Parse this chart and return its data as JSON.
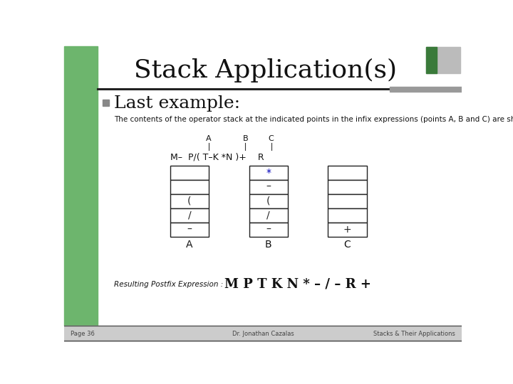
{
  "title": "Stack Application(s)",
  "title_fontsize": 26,
  "bg_color": "#ffffff",
  "left_bar_color": "#6db56d",
  "bullet_color": "#888888",
  "subtitle": "Last example:",
  "subtitle_fontsize": 18,
  "description": "The contents of the operator stack at the indicated points in the infix expressions (points A, B and C) are shown below for each case",
  "description_fontsize": 7.5,
  "stack_A_contents": [
    "",
    "",
    "(",
    "/",
    "–"
  ],
  "stack_B_contents": [
    "*",
    "–",
    "(",
    "/",
    "–"
  ],
  "stack_C_contents": [
    "",
    "",
    "",
    "",
    "+"
  ],
  "stack_labels": [
    "A",
    "B",
    "C"
  ],
  "postfix_label": "Resulting Postfix Expression :",
  "postfix_expr": "M P T K N * – / – R +",
  "footer_left": "Page 36",
  "footer_mid": "Dr. Jonathan Cazalas",
  "footer_right": "Stacks & Their Applications"
}
